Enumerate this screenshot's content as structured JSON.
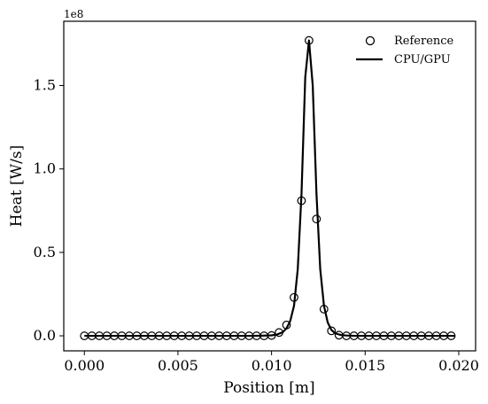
{
  "chart_data": {
    "type": "line",
    "xlabel": "Position [m]",
    "ylabel": "Heat [W/s]",
    "y_offset_label": "1e8",
    "xlim": [
      -0.0011,
      0.0209
    ],
    "ylim": [
      -0.09,
      1.885
    ],
    "y_scale_factor": 100000000,
    "x_ticks": [
      0.0,
      0.005,
      0.01,
      0.015,
      0.02
    ],
    "x_tick_labels": [
      "0.000",
      "0.005",
      "0.010",
      "0.015",
      "0.020"
    ],
    "y_ticks": [
      0.0,
      0.5,
      1.0,
      1.5
    ],
    "y_tick_labels": [
      "0.0",
      "0.5",
      "1.0",
      "1.5"
    ],
    "grid": false,
    "legend_position": "top-right",
    "series": [
      {
        "name": "Reference",
        "style": "markers",
        "marker": "open-circle",
        "color": "#000000",
        "x": [
          0.0,
          0.0004,
          0.0008,
          0.0012,
          0.0016,
          0.002,
          0.0024,
          0.0028,
          0.0032,
          0.0036,
          0.004,
          0.0044,
          0.0048,
          0.0052,
          0.0056,
          0.006,
          0.0064,
          0.0068,
          0.0072,
          0.0076,
          0.008,
          0.0084,
          0.0088,
          0.0092,
          0.0096,
          0.01,
          0.0104,
          0.0108,
          0.0112,
          0.0116,
          0.012,
          0.0124,
          0.0128,
          0.0132,
          0.0136,
          0.014,
          0.0144,
          0.0148,
          0.0152,
          0.0156,
          0.016,
          0.0164,
          0.0168,
          0.0172,
          0.0176,
          0.018,
          0.0184,
          0.0188,
          0.0192,
          0.0196
        ],
        "y": [
          0,
          0,
          0,
          0,
          0,
          0,
          0,
          0,
          0,
          0,
          0,
          0,
          0,
          0,
          0,
          0,
          0,
          0,
          0,
          0,
          0,
          0,
          0,
          0,
          0,
          0.002,
          0.02,
          0.065,
          0.23,
          0.81,
          1.77,
          0.7,
          0.16,
          0.03,
          0.004,
          0,
          0,
          0,
          0,
          0,
          0,
          0,
          0,
          0,
          0,
          0,
          0,
          0,
          0,
          0
        ]
      },
      {
        "name": "CPU/GPU",
        "style": "line",
        "color": "#000000",
        "x": [
          0.0,
          0.002,
          0.004,
          0.006,
          0.008,
          0.009,
          0.0095,
          0.01,
          0.0103,
          0.0106,
          0.0108,
          0.011,
          0.0112,
          0.0114,
          0.0116,
          0.0118,
          0.012,
          0.0122,
          0.0124,
          0.0126,
          0.0128,
          0.013,
          0.0132,
          0.0134,
          0.0137,
          0.014,
          0.0145,
          0.015,
          0.016,
          0.018,
          0.0198
        ],
        "y": [
          0,
          0,
          0,
          0,
          0,
          0,
          0.001,
          0.003,
          0.008,
          0.022,
          0.045,
          0.09,
          0.18,
          0.4,
          0.85,
          1.55,
          1.77,
          1.5,
          0.85,
          0.4,
          0.18,
          0.08,
          0.035,
          0.015,
          0.005,
          0.002,
          0,
          0,
          0,
          0,
          0
        ]
      }
    ]
  }
}
